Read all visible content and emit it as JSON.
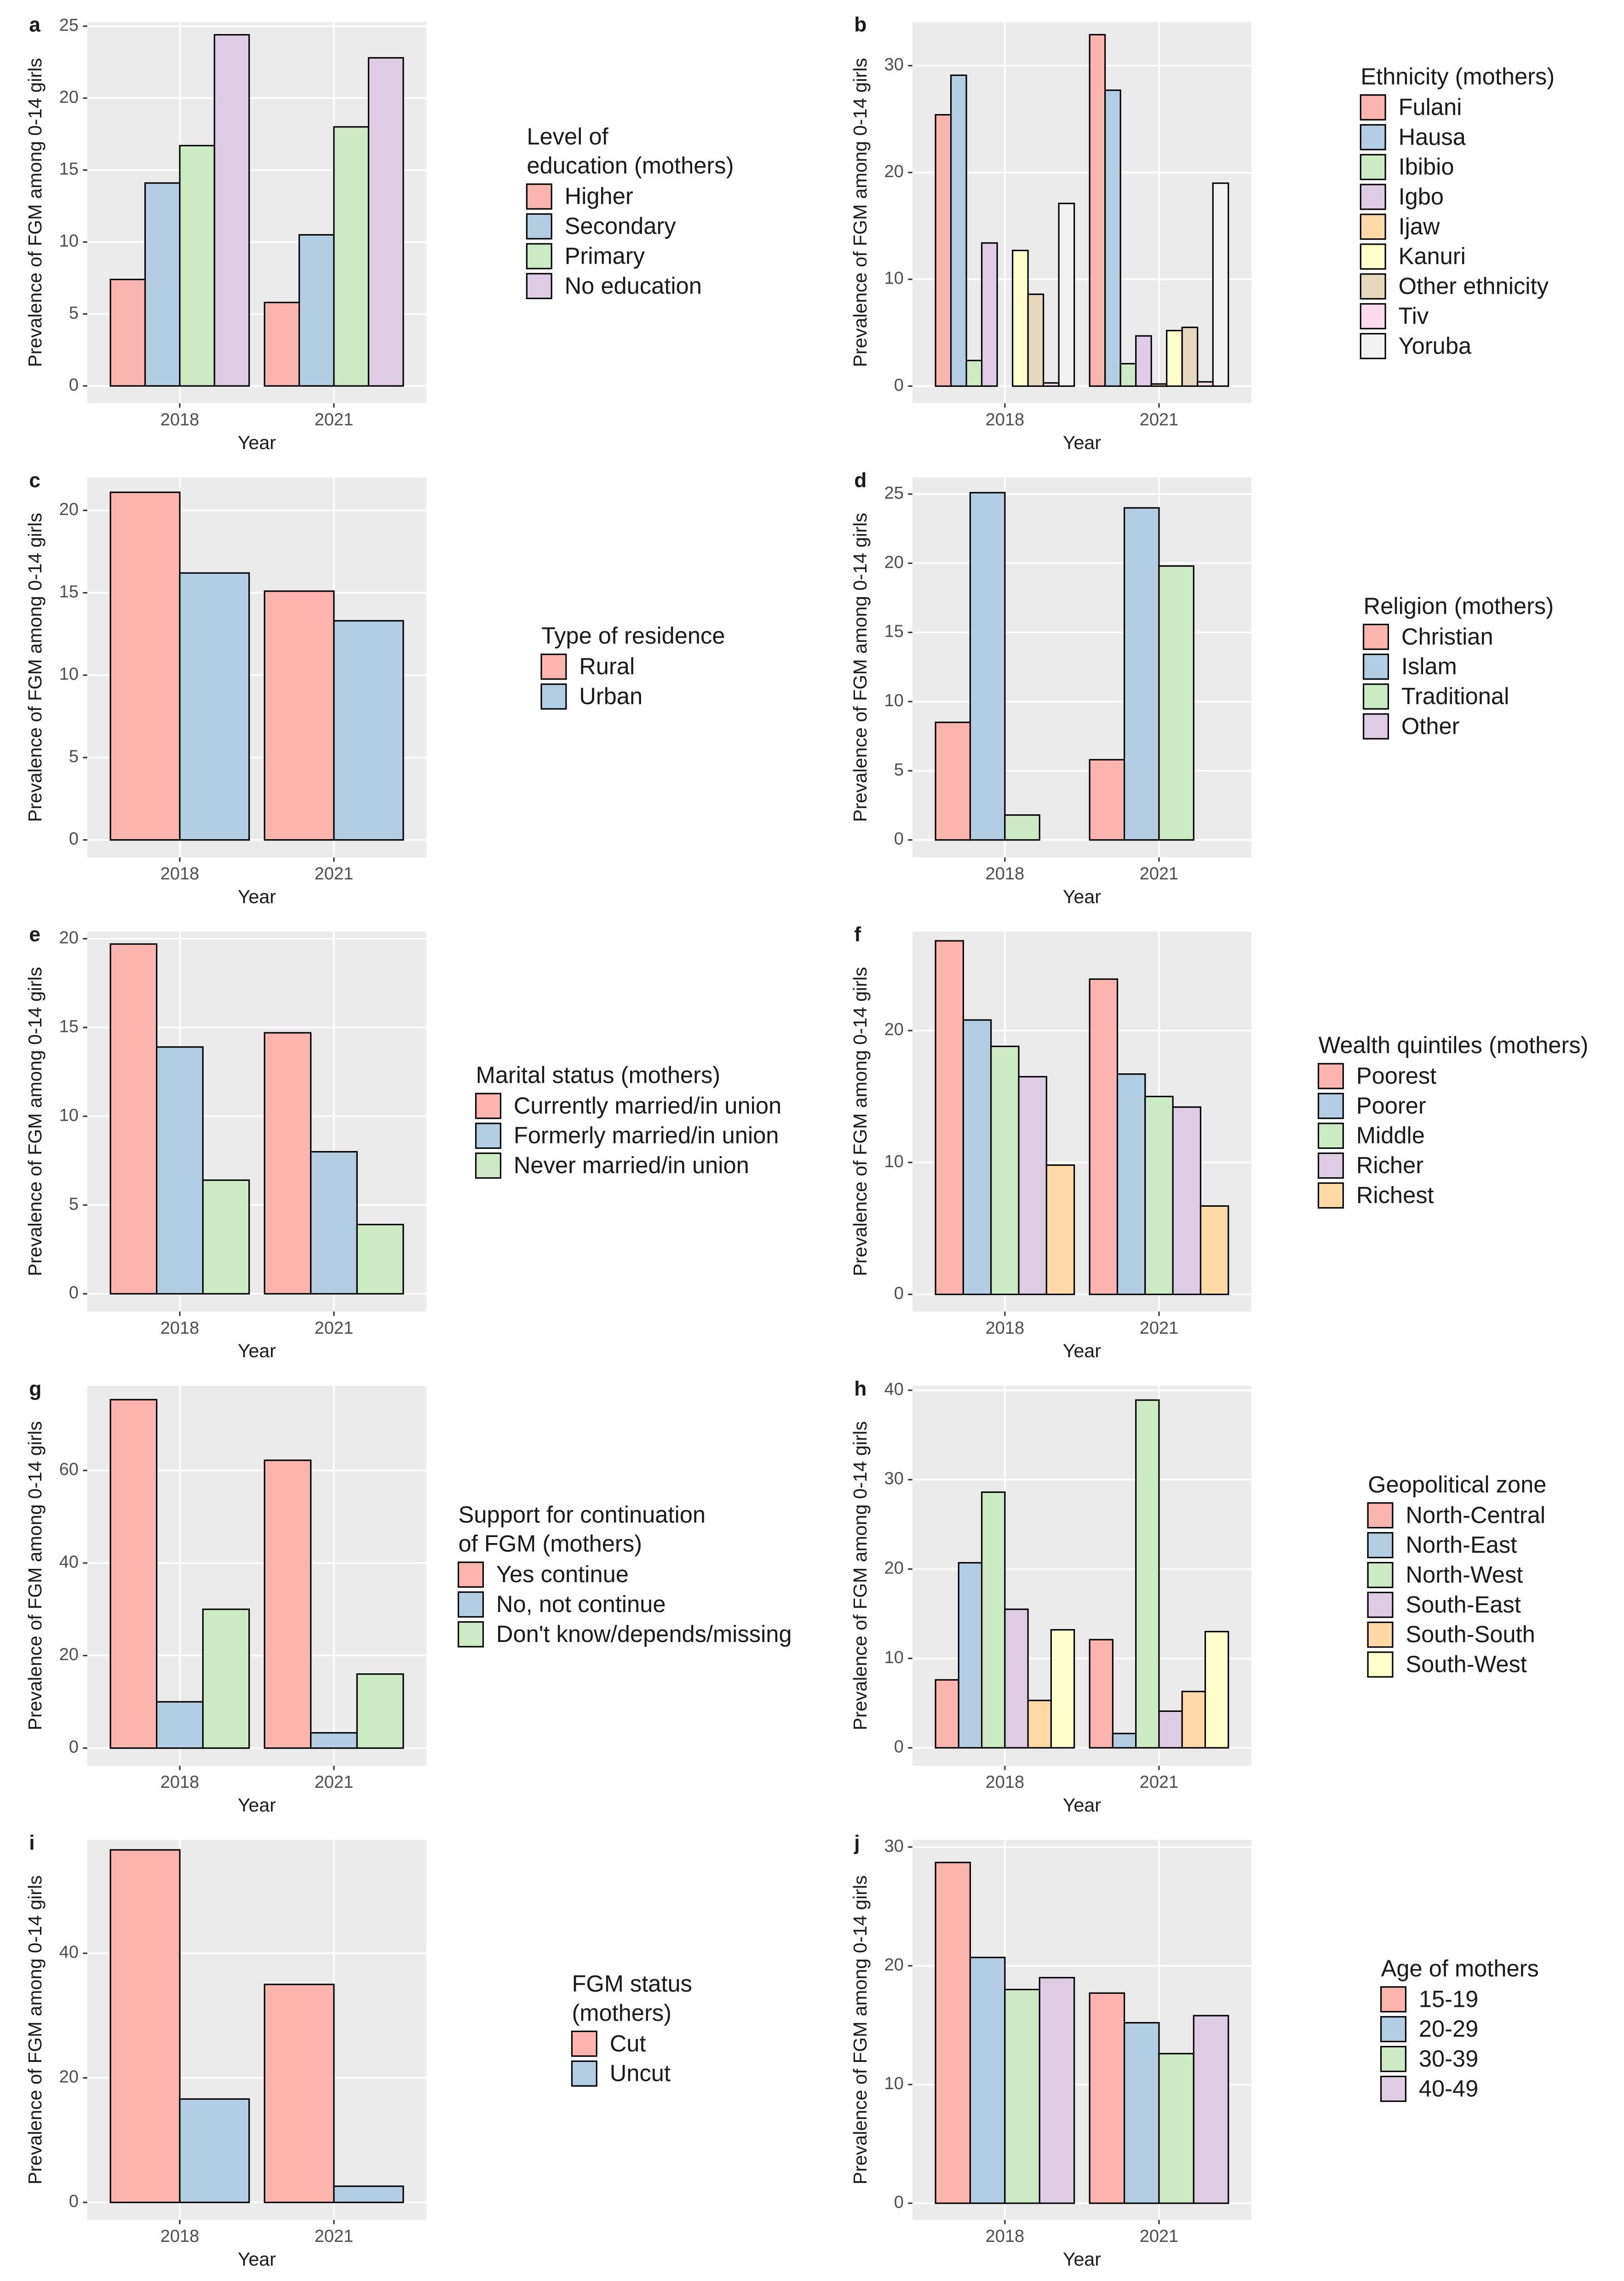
{
  "chart_data": [
    {
      "type": "bar",
      "title": "a",
      "ylabel": "Prevalence of FGM among 0-14 girls",
      "xlabel": "Year",
      "categories": [
        "2018",
        "2021"
      ],
      "legend_title": [
        "Level of",
        "education (mothers)"
      ],
      "ylim": [
        -1.2,
        25.3
      ],
      "yticks": [
        0,
        5,
        10,
        15,
        20,
        25
      ],
      "grid": true,
      "series": [
        {
          "name": "Higher",
          "color": "#fbb4ae",
          "values": [
            7.4,
            5.8
          ]
        },
        {
          "name": "Secondary",
          "color": "#b3cde3",
          "values": [
            14.1,
            10.5
          ]
        },
        {
          "name": "Primary",
          "color": "#ccebc5",
          "values": [
            16.7,
            18.0
          ]
        },
        {
          "name": "No education",
          "color": "#decbe4",
          "values": [
            24.4,
            22.8
          ]
        }
      ]
    },
    {
      "type": "bar",
      "title": "b",
      "ylabel": "Prevalence of FGM among 0-14 girls",
      "xlabel": "Year",
      "categories": [
        "2018",
        "2021"
      ],
      "legend_title": [
        "Ethnicity (mothers)"
      ],
      "ylim": [
        -1.6,
        34.1
      ],
      "yticks": [
        0,
        10,
        20,
        30
      ],
      "grid": true,
      "series": [
        {
          "name": "Fulani",
          "color": "#fbb4ae",
          "values": [
            25.4,
            32.9
          ]
        },
        {
          "name": "Hausa",
          "color": "#b3cde3",
          "values": [
            29.1,
            27.7
          ]
        },
        {
          "name": "Ibibio",
          "color": "#ccebc5",
          "values": [
            2.4,
            2.1
          ]
        },
        {
          "name": "Igbo",
          "color": "#decbe4",
          "values": [
            13.4,
            4.7
          ]
        },
        {
          "name": "Ijaw",
          "color": "#fed9a6",
          "values": [
            0,
            0.2
          ]
        },
        {
          "name": "Kanuri",
          "color": "#ffffcc",
          "values": [
            12.7,
            5.2
          ]
        },
        {
          "name": "Other ethnicity",
          "color": "#e5d8bd",
          "values": [
            8.6,
            5.5
          ]
        },
        {
          "name": "Tiv",
          "color": "#fddaec",
          "values": [
            0.3,
            0.4
          ]
        },
        {
          "name": "Yoruba",
          "color": "#f2f2f2",
          "values": [
            17.1,
            19.0
          ]
        }
      ]
    },
    {
      "type": "bar",
      "title": "c",
      "ylabel": "Prevalence of FGM among 0-14 girls",
      "xlabel": "Year",
      "categories": [
        "2018",
        "2021"
      ],
      "legend_title": [
        "Type of residence"
      ],
      "ylim": [
        -1.06,
        22.0
      ],
      "yticks": [
        0,
        5,
        10,
        15,
        20
      ],
      "grid": true,
      "series": [
        {
          "name": "Rural",
          "color": "#fbb4ae",
          "values": [
            21.1,
            15.1
          ]
        },
        {
          "name": "Urban",
          "color": "#b3cde3",
          "values": [
            16.2,
            13.3
          ]
        }
      ]
    },
    {
      "type": "bar",
      "title": "d",
      "ylabel": "Prevalence of FGM among 0-14 girls",
      "xlabel": "Year",
      "categories": [
        "2018",
        "2021"
      ],
      "legend_title": [
        "Religion (mothers)"
      ],
      "ylim": [
        -1.26,
        26.2
      ],
      "yticks": [
        0,
        5,
        10,
        15,
        20,
        25
      ],
      "grid": true,
      "series": [
        {
          "name": "Christian",
          "color": "#fbb4ae",
          "values": [
            8.5,
            5.8
          ]
        },
        {
          "name": "Islam",
          "color": "#b3cde3",
          "values": [
            25.1,
            24.0
          ]
        },
        {
          "name": "Traditional",
          "color": "#ccebc5",
          "values": [
            1.8,
            19.8
          ]
        },
        {
          "name": "Other",
          "color": "#decbe4",
          "values": [
            0,
            0
          ]
        }
      ]
    },
    {
      "type": "bar",
      "title": "e",
      "ylabel": "Prevalence of FGM among 0-14 girls",
      "xlabel": "Year",
      "categories": [
        "2018",
        "2021"
      ],
      "legend_title": [
        "Marital status (mothers)"
      ],
      "ylim": [
        -1.0,
        20.4
      ],
      "yticks": [
        0,
        5,
        10,
        15,
        20
      ],
      "grid": true,
      "series": [
        {
          "name": "Currently married/in union",
          "color": "#fbb4ae",
          "values": [
            19.7,
            14.7
          ]
        },
        {
          "name": "Formerly married/in union",
          "color": "#b3cde3",
          "values": [
            13.9,
            8.0
          ]
        },
        {
          "name": "Never married/in union",
          "color": "#ccebc5",
          "values": [
            6.4,
            3.9
          ]
        }
      ]
    },
    {
      "type": "bar",
      "title": "f",
      "ylabel": "Prevalence of FGM among 0-14 girls",
      "xlabel": "Year",
      "categories": [
        "2018",
        "2021"
      ],
      "legend_title": [
        "Wealth quintiles (mothers)"
      ],
      "ylim": [
        -1.3,
        27.5
      ],
      "yticks": [
        0,
        10,
        20
      ],
      "grid": true,
      "series": [
        {
          "name": "Poorest",
          "color": "#fbb4ae",
          "values": [
            26.8,
            23.9
          ]
        },
        {
          "name": "Poorer",
          "color": "#b3cde3",
          "values": [
            20.8,
            16.7
          ]
        },
        {
          "name": "Middle",
          "color": "#ccebc5",
          "values": [
            18.8,
            15.0
          ]
        },
        {
          "name": "Richer",
          "color": "#decbe4",
          "values": [
            16.5,
            14.2
          ]
        },
        {
          "name": "Richest",
          "color": "#fed9a6",
          "values": [
            9.8,
            6.7
          ]
        }
      ]
    },
    {
      "type": "bar",
      "title": "g",
      "ylabel": "Prevalence of FGM among 0-14 girls",
      "xlabel": "Year",
      "categories": [
        "2018",
        "2021"
      ],
      "legend_title": [
        "Support for continuation",
        "of FGM (mothers)"
      ],
      "ylim": [
        -3.8,
        78.3
      ],
      "yticks": [
        0,
        20,
        40,
        60
      ],
      "grid": true,
      "series": [
        {
          "name": "Yes continue",
          "color": "#fbb4ae",
          "values": [
            75.3,
            62.2
          ]
        },
        {
          "name": "No, not continue",
          "color": "#b3cde3",
          "values": [
            10,
            3.3
          ]
        },
        {
          "name": "Don't know/depends/missing",
          "color": "#ccebc5",
          "values": [
            30,
            16.0
          ]
        }
      ]
    },
    {
      "type": "bar",
      "title": "h",
      "ylabel": "Prevalence of FGM among 0-14 girls",
      "xlabel": "Year",
      "categories": [
        "2018",
        "2021"
      ],
      "legend_title": [
        "Geopolitical zone"
      ],
      "ylim": [
        -2.0,
        40.5
      ],
      "yticks": [
        0,
        10,
        20,
        30,
        40
      ],
      "grid": true,
      "series": [
        {
          "name": "North-Central",
          "color": "#fbb4ae",
          "values": [
            7.6,
            12.1
          ]
        },
        {
          "name": "North-East",
          "color": "#b3cde3",
          "values": [
            20.7,
            1.6
          ]
        },
        {
          "name": "North-West",
          "color": "#ccebc5",
          "values": [
            28.6,
            38.9
          ]
        },
        {
          "name": "South-East",
          "color": "#decbe4",
          "values": [
            15.5,
            4.1
          ]
        },
        {
          "name": "South-South",
          "color": "#fed9a6",
          "values": [
            5.3,
            6.3
          ]
        },
        {
          "name": "South-West",
          "color": "#ffffcc",
          "values": [
            13.2,
            13.0
          ]
        }
      ]
    },
    {
      "type": "bar",
      "title": "i",
      "ylabel": "Prevalence of FGM among 0-14 girls",
      "xlabel": "Year",
      "categories": [
        "2018",
        "2021"
      ],
      "legend_title": [
        "FGM status",
        "(mothers)"
      ],
      "ylim": [
        -2.8,
        58.2
      ],
      "yticks": [
        0,
        20,
        40
      ],
      "grid": true,
      "series": [
        {
          "name": "Cut",
          "color": "#fbb4ae",
          "values": [
            56.6,
            35.0
          ]
        },
        {
          "name": "Uncut",
          "color": "#b3cde3",
          "values": [
            16.6,
            2.6
          ]
        }
      ]
    },
    {
      "type": "bar",
      "title": "j",
      "ylabel": "Prevalence of FGM among 0-14 girls",
      "xlabel": "Year",
      "categories": [
        "2018",
        "2021"
      ],
      "legend_title": [
        "Age of mothers"
      ],
      "ylim": [
        -1.4,
        30.6
      ],
      "yticks": [
        0,
        10,
        20,
        30
      ],
      "grid": true,
      "series": [
        {
          "name": "15-19",
          "color": "#fbb4ae",
          "values": [
            28.7,
            17.7
          ]
        },
        {
          "name": "20-29",
          "color": "#b3cde3",
          "values": [
            20.7,
            15.2
          ]
        },
        {
          "name": "30-39",
          "color": "#ccebc5",
          "values": [
            18.0,
            12.6
          ]
        },
        {
          "name": "40-49",
          "color": "#decbe4",
          "values": [
            19.0,
            15.8
          ]
        }
      ]
    }
  ]
}
